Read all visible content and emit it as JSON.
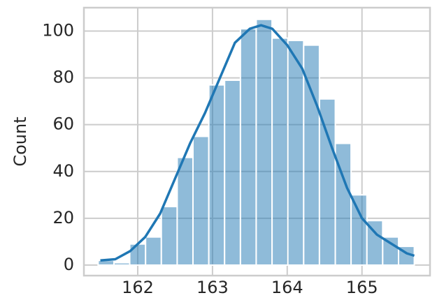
{
  "chart_data": {
    "type": "histogram",
    "y_label": "Count",
    "bins": [
      161.47,
      161.682,
      161.893,
      162.105,
      162.316,
      162.528,
      162.739,
      162.951,
      163.162,
      163.374,
      163.585,
      163.797,
      164.008,
      164.22,
      164.431,
      164.643,
      164.854,
      165.066,
      165.277,
      165.489,
      165.7
    ],
    "values": [
      2,
      1,
      9,
      12,
      25,
      46,
      55,
      77,
      79,
      101,
      105,
      97,
      96,
      94,
      71,
      52,
      30,
      19,
      12,
      8
    ],
    "color": "#1f77b4",
    "kde": {
      "x": [
        161.5,
        161.7,
        161.9,
        162.1,
        162.3,
        162.5,
        162.7,
        162.9,
        163.1,
        163.3,
        163.5,
        163.65,
        163.8,
        164.0,
        164.2,
        164.4,
        164.6,
        164.8,
        165.0,
        165.2,
        165.4,
        165.6,
        165.7
      ],
      "y": [
        2,
        2.5,
        6,
        12,
        22,
        37,
        52,
        65,
        80,
        95,
        101,
        102.5,
        101,
        94,
        84,
        68,
        50,
        33,
        20,
        13,
        9,
        5,
        4
      ]
    },
    "xlim": [
      161.28,
      165.91
    ],
    "ylim": [
      -4.5,
      110
    ],
    "xticks": [
      162,
      163,
      164,
      165
    ],
    "yticks": [
      0,
      20,
      40,
      60,
      80,
      100
    ],
    "grid": true
  }
}
